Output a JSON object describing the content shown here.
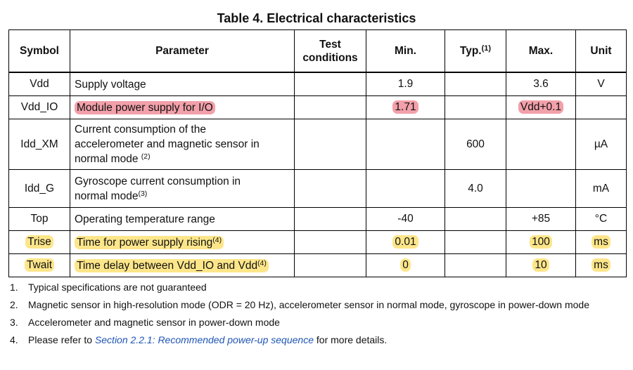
{
  "title": "Table 4. Electrical characteristics",
  "headers": {
    "symbol": "Symbol",
    "parameter": "Parameter",
    "test_line1": "Test",
    "test_line2": "conditions",
    "min": "Min.",
    "typ": "Typ.",
    "typ_sup": "(1)",
    "max": "Max.",
    "unit": "Unit"
  },
  "rows": [
    {
      "symbol": "Vdd",
      "parameter": "Supply voltage",
      "sup": "",
      "test": "",
      "min": "1.9",
      "typ": "",
      "max": "3.6",
      "unit": "V"
    },
    {
      "symbol": "Vdd_IO",
      "parameter": "Module power supply for I/O",
      "sup": "",
      "test": "",
      "min": "1.71",
      "typ": "",
      "max": "Vdd+0.1",
      "unit": ""
    },
    {
      "symbol": "Idd_XM",
      "parameter_l1": "Current consumption of the",
      "parameter_l2": "accelerometer and magnetic sensor in",
      "parameter_l3": "normal mode ",
      "sup": "(2)",
      "test": "",
      "min": "",
      "typ": "600",
      "max": "",
      "unit": "µA"
    },
    {
      "symbol": "Idd_G",
      "parameter_l1": "Gyroscope current consumption in",
      "parameter_l2": "normal mode",
      "sup": "(3)",
      "test": "",
      "min": "",
      "typ": "4.0",
      "max": "",
      "unit": "mA"
    },
    {
      "symbol": "Top",
      "parameter": "Operating temperature range",
      "sup": "",
      "test": "",
      "min": "-40",
      "typ": "",
      "max": "+85",
      "unit": "°C"
    },
    {
      "symbol": "Trise",
      "parameter": "Time for power supply rising",
      "sup": "(4)",
      "test": "",
      "min": "0.01",
      "typ": "",
      "max": "100",
      "unit": "ms"
    },
    {
      "symbol": "Twait",
      "parameter": "Time delay between Vdd_IO and Vdd",
      "sup": "(4)",
      "test": "",
      "min": "0",
      "typ": "",
      "max": "10",
      "unit": "ms"
    }
  ],
  "notes": [
    {
      "num": "1.",
      "text": "Typical specifications are not guaranteed"
    },
    {
      "num": "2.",
      "text": "Magnetic sensor in high-resolution mode (ODR = 20 Hz), accelerometer sensor in normal mode, gyroscope in power-down mode"
    },
    {
      "num": "3.",
      "text": "Accelerometer and magnetic sensor in power-down mode"
    },
    {
      "num": "4.",
      "text_before": "Please refer to ",
      "link": "Section 2.2.1: Recommended power-up sequence",
      "text_after": " for more details."
    }
  ],
  "highlight_colors": {
    "red": "#f2a0aa",
    "yellow": "#fde68a",
    "link": "#1f56b5"
  }
}
